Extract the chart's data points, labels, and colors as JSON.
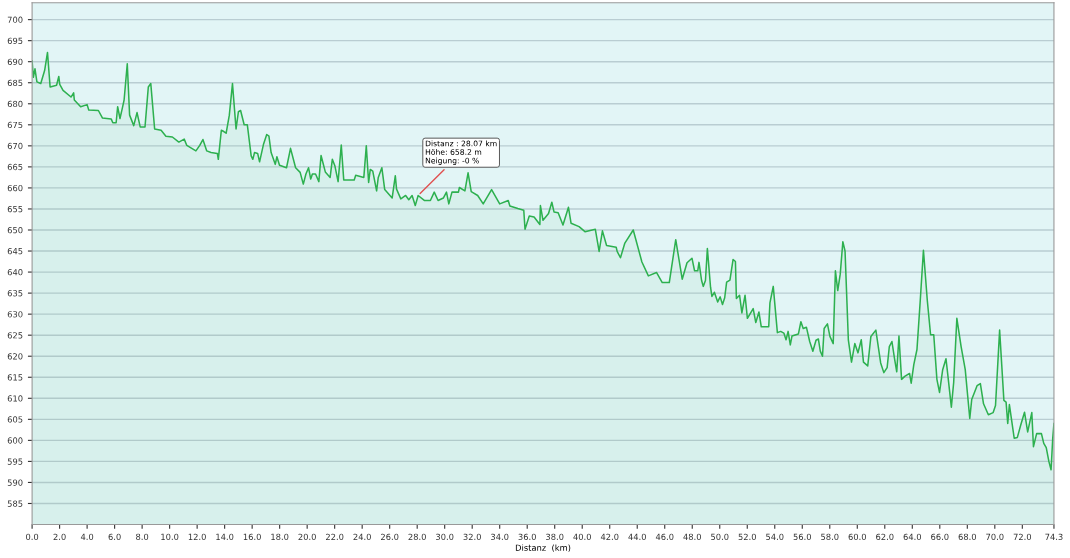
{
  "chart_data": {
    "type": "area",
    "xlabel": "Distanz  (km)",
    "x": [
      0.0,
      0.09,
      0.21,
      0.35,
      0.63,
      0.91,
      1.12,
      1.31,
      1.78,
      1.94,
      2.01,
      2.25,
      2.83,
      3.02,
      3.07,
      3.53,
      4.0,
      4.12,
      4.82,
      5.12,
      5.75,
      5.87,
      6.11,
      6.22,
      6.39,
      6.57,
      6.69,
      6.92,
      7.09,
      7.39,
      7.63,
      7.86,
      8.21,
      8.45,
      8.63,
      8.91,
      9.38,
      9.73,
      10.2,
      10.67,
      11.06,
      11.25,
      11.91,
      12.19,
      12.42,
      12.7,
      13.01,
      13.47,
      13.54,
      13.76,
      13.94,
      14.11,
      14.34,
      14.57,
      14.83,
      15.0,
      15.16,
      15.42,
      15.65,
      15.93,
      16.05,
      16.17,
      16.4,
      16.54,
      16.82,
      17.06,
      17.22,
      17.38,
      17.68,
      17.8,
      17.99,
      18.5,
      18.79,
      19.16,
      19.49,
      19.72,
      19.91,
      20.1,
      20.26,
      20.38,
      20.61,
      20.85,
      21.01,
      21.32,
      21.67,
      21.83,
      22.02,
      22.25,
      22.48,
      22.66,
      23.42,
      23.53,
      24.12,
      24.3,
      24.47,
      24.59,
      24.77,
      25.05,
      25.17,
      25.43,
      25.64,
      26.18,
      26.41,
      26.5,
      26.81,
      27.16,
      27.39,
      27.63,
      27.86,
      28.07,
      28.54,
      28.96,
      29.24,
      29.52,
      29.9,
      30.13,
      30.3,
      30.53,
      31.0,
      31.07,
      31.47,
      31.7,
      31.93,
      32.4,
      32.8,
      33.41,
      34.0,
      34.62,
      34.74,
      35.32,
      35.75,
      35.84,
      36.15,
      36.5,
      36.92,
      36.96,
      37.15,
      37.55,
      37.79,
      37.95,
      38.25,
      38.6,
      39.0,
      39.19,
      39.77,
      40.2,
      40.95,
      41.23,
      41.47,
      41.77,
      42.47,
      42.54,
      42.78,
      43.1,
      43.71,
      44.34,
      44.81,
      45.4,
      45.82,
      46.33,
      46.8,
      47.27,
      47.62,
      47.98,
      48.17,
      48.4,
      48.49,
      48.68,
      48.8,
      48.96,
      49.1,
      49.33,
      49.43,
      49.61,
      49.85,
      50.03,
      50.2,
      50.36,
      50.5,
      50.74,
      50.97,
      51.14,
      51.21,
      51.44,
      51.61,
      51.84,
      52.01,
      52.43,
      52.62,
      52.85,
      53.02,
      53.56,
      53.65,
      53.89,
      54.19,
      54.43,
      54.66,
      54.82,
      54.97,
      55.13,
      55.25,
      55.72,
      55.9,
      56.07,
      56.3,
      56.54,
      56.77,
      57.0,
      57.17,
      57.31,
      57.47,
      57.59,
      57.83,
      58.01,
      58.25,
      58.41,
      58.58,
      58.76,
      58.95,
      59.11,
      59.35,
      59.58,
      59.82,
      60.05,
      60.29,
      60.45,
      60.76,
      60.99,
      61.35,
      61.7,
      61.93,
      62.17,
      62.33,
      62.52,
      62.7,
      62.87,
      63.03,
      63.22,
      63.45,
      63.8,
      63.92,
      64.11,
      64.34,
      64.58,
      64.81,
      65.09,
      65.33,
      65.56,
      65.79,
      65.98,
      66.21,
      66.45,
      66.54,
      66.84,
      67.01,
      67.24,
      67.55,
      67.85,
      68.18,
      68.32,
      68.71,
      68.95,
      69.18,
      69.53,
      69.88,
      70.05,
      70.35,
      70.66,
      70.82,
      70.94,
      71.06,
      71.41,
      71.64,
      71.88,
      72.16,
      72.39,
      72.69,
      72.81,
      73.04,
      73.39,
      73.56,
      73.74,
      73.93,
      74.09,
      74.21,
      74.3
    ],
    "series": [
      {
        "color": "#2db04f",
        "values": [
          690.2,
          686.3,
          688.3,
          685.2,
          684.8,
          687.9,
          692.2,
          684.0,
          684.4,
          686.5,
          684.6,
          683.2,
          681.6,
          682.6,
          680.9,
          679.3,
          679.8,
          678.5,
          678.4,
          676.6,
          676.4,
          675.5,
          675.5,
          679.3,
          676.5,
          679.1,
          680.9,
          689.5,
          677.3,
          674.8,
          677.9,
          674.5,
          674.5,
          684.0,
          684.8,
          674.0,
          673.7,
          672.3,
          672.1,
          670.9,
          671.6,
          670.1,
          668.8,
          670.1,
          671.5,
          668.8,
          668.4,
          668.2,
          666.8,
          673.7,
          673.4,
          673.0,
          677.3,
          684.8,
          674.0,
          678.1,
          678.4,
          675.0,
          675.0,
          667.6,
          666.8,
          668.4,
          668.2,
          666.2,
          670.3,
          672.7,
          672.3,
          668.4,
          665.6,
          667.4,
          665.4,
          664.8,
          669.4,
          664.8,
          663.7,
          660.9,
          663.3,
          664.8,
          662.1,
          663.3,
          663.3,
          661.5,
          667.7,
          663.8,
          662.5,
          666.8,
          665.2,
          661.5,
          670.2,
          661.9,
          661.9,
          663.0,
          662.5,
          670.0,
          661.3,
          664.4,
          664.0,
          659.3,
          662.5,
          664.8,
          659.6,
          657.6,
          662.9,
          659.7,
          657.4,
          658.2,
          657.2,
          658.2,
          655.8,
          658.2,
          657.0,
          657.0,
          659.0,
          657.0,
          657.6,
          659.0,
          656.2,
          659.0,
          659.0,
          660.1,
          659.3,
          663.6,
          659.1,
          658.2,
          656.2,
          659.6,
          656.2,
          657.0,
          655.7,
          655.1,
          654.7,
          650.2,
          653.3,
          653.1,
          651.3,
          655.8,
          652.3,
          653.9,
          656.6,
          654.3,
          654.1,
          651.2,
          655.4,
          651.6,
          650.8,
          649.6,
          650.2,
          644.9,
          649.8,
          646.3,
          645.9,
          644.9,
          643.4,
          646.9,
          650.0,
          642.4,
          639.1,
          639.9,
          637.5,
          637.5,
          647.7,
          638.3,
          642.2,
          643.3,
          640.3,
          640.3,
          642.3,
          638.0,
          636.6,
          638.0,
          645.6,
          636.4,
          634.2,
          635.2,
          632.9,
          634.1,
          632.3,
          633.9,
          637.6,
          638.1,
          643.0,
          642.5,
          633.7,
          634.5,
          630.3,
          634.5,
          629.0,
          631.3,
          628.0,
          630.5,
          627.0,
          627.0,
          632.7,
          636.6,
          625.6,
          625.9,
          625.5,
          623.9,
          625.9,
          622.7,
          624.8,
          625.3,
          628.2,
          626.6,
          626.9,
          623.5,
          621.2,
          623.8,
          624.1,
          621.2,
          620.0,
          626.6,
          627.7,
          624.7,
          623.0,
          640.3,
          635.6,
          639.5,
          647.2,
          645.0,
          623.9,
          618.6,
          623.0,
          620.8,
          623.9,
          618.6,
          617.7,
          624.7,
          626.2,
          618.4,
          616.1,
          617.3,
          622.3,
          623.5,
          619.6,
          616.3,
          624.8,
          614.5,
          615.2,
          615.9,
          613.6,
          618.0,
          621.6,
          633.3,
          645.2,
          633.3,
          625.1,
          625.1,
          614.5,
          611.4,
          616.8,
          619.4,
          616.8,
          607.9,
          613.8,
          629.0,
          622.3,
          616.8,
          605.2,
          609.7,
          613.0,
          613.5,
          608.7,
          606.1,
          606.6,
          608.3,
          626.2,
          609.5,
          609.1,
          604.0,
          608.5,
          600.5,
          600.7,
          603.6,
          606.7,
          602.0,
          606.6,
          598.5,
          601.6,
          601.6,
          599.3,
          598.3,
          595.0,
          593.0,
          600.4,
          604.0
        ]
      }
    ],
    "xlim": [
      0,
      74.3
    ],
    "ylim": [
      580,
      704
    ],
    "xticks": [
      {
        "value": 0,
        "label": "0.0"
      },
      {
        "value": 2,
        "label": "2.0"
      },
      {
        "value": 4,
        "label": "4.0"
      },
      {
        "value": 6,
        "label": "6.0"
      },
      {
        "value": 8,
        "label": "8.0"
      },
      {
        "value": 10,
        "label": "10.0"
      },
      {
        "value": 12,
        "label": "12.0"
      },
      {
        "value": 14,
        "label": "14.0"
      },
      {
        "value": 16,
        "label": "16.0"
      },
      {
        "value": 18,
        "label": "18.0"
      },
      {
        "value": 20,
        "label": "20.0"
      },
      {
        "value": 22,
        "label": "22.0"
      },
      {
        "value": 24,
        "label": "24.0"
      },
      {
        "value": 26,
        "label": "26.0"
      },
      {
        "value": 28,
        "label": "28.0"
      },
      {
        "value": 30,
        "label": "30.0"
      },
      {
        "value": 32,
        "label": "32.0"
      },
      {
        "value": 34,
        "label": "34.0"
      },
      {
        "value": 36,
        "label": "36.0"
      },
      {
        "value": 38,
        "label": "38.0"
      },
      {
        "value": 40,
        "label": "40.0"
      },
      {
        "value": 42,
        "label": "42.0"
      },
      {
        "value": 44,
        "label": "44.0"
      },
      {
        "value": 46,
        "label": "46.0"
      },
      {
        "value": 48,
        "label": "48.0"
      },
      {
        "value": 50,
        "label": "50.0"
      },
      {
        "value": 52,
        "label": "52.0"
      },
      {
        "value": 54,
        "label": "54.0"
      },
      {
        "value": 56,
        "label": "56.0"
      },
      {
        "value": 58,
        "label": "58.0"
      },
      {
        "value": 60,
        "label": "60.0"
      },
      {
        "value": 62,
        "label": "62.0"
      },
      {
        "value": 64,
        "label": "64.0"
      },
      {
        "value": 66,
        "label": "66.0"
      },
      {
        "value": 68,
        "label": "68.0"
      },
      {
        "value": 70,
        "label": "70.0"
      },
      {
        "value": 72,
        "label": "72.0"
      },
      74.3
    ],
    "yticks": [
      585,
      590,
      595,
      600,
      605,
      610,
      615,
      620,
      625,
      630,
      635,
      640,
      645,
      650,
      655,
      660,
      665,
      670,
      675,
      680,
      685,
      690,
      695,
      700
    ],
    "grid": "y",
    "annotations": [
      {
        "text": "Distanz : 28.07 km\nHöhe: 658.2 m\nNeigung: -0 %",
        "x": 28.07,
        "y": 658.2
      }
    ]
  }
}
